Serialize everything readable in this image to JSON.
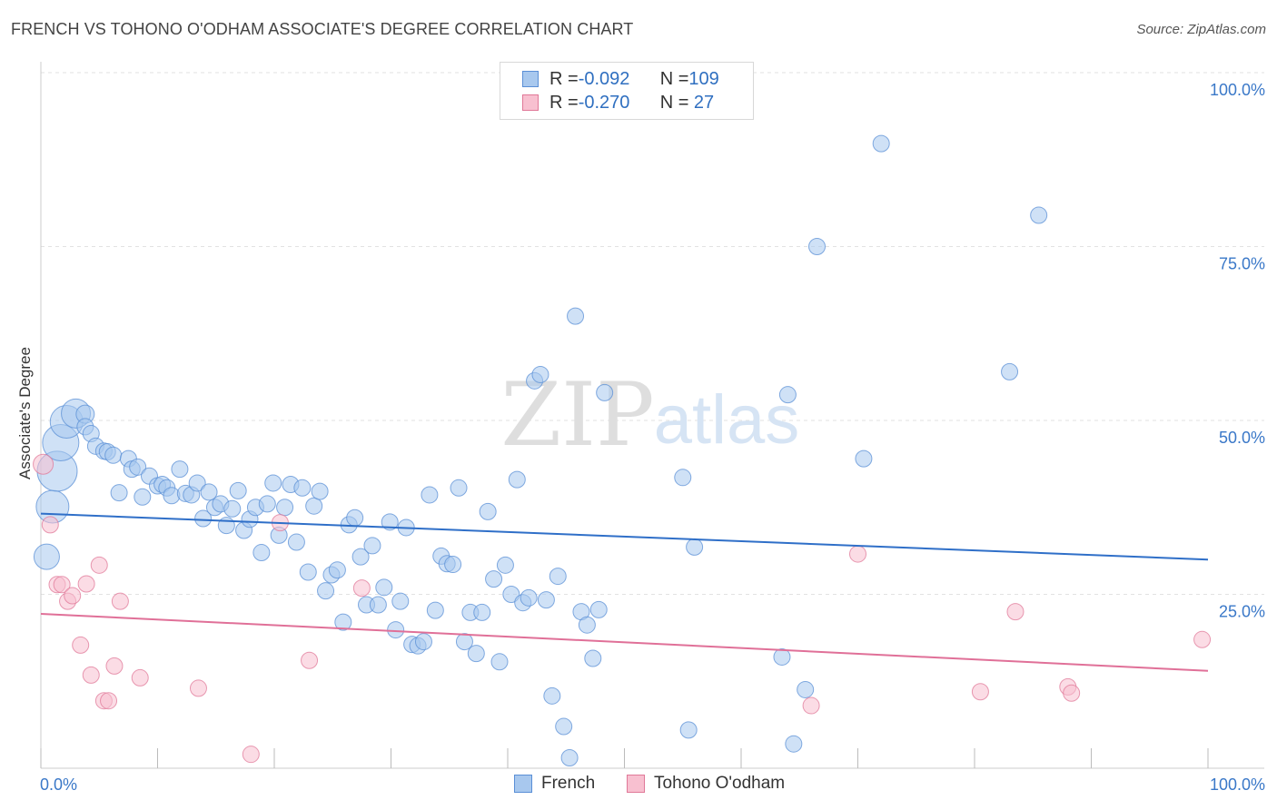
{
  "title": "FRENCH VS TOHONO O'ODHAM ASSOCIATE'S DEGREE CORRELATION CHART",
  "source": "Source: ZipAtlas.com",
  "watermark": {
    "zip": "ZIP",
    "atlas": "atlas"
  },
  "legend": {
    "rows": [
      {
        "r_label": "R = ",
        "r_value": "-0.092",
        "n_label": "N = ",
        "n_value": "109",
        "color": "#a8c8ee",
        "border": "#5a8fd6"
      },
      {
        "r_label": "R = ",
        "r_value": "-0.270",
        "n_label": "N = ",
        "n_value": " 27",
        "color": "#f8c0d0",
        "border": "#e07898"
      }
    ]
  },
  "bottom_legend": [
    {
      "label": "French",
      "color": "#a8c8ee",
      "border": "#5a8fd6"
    },
    {
      "label": "Tohono O'odham",
      "color": "#f8c0d0",
      "border": "#e07898"
    }
  ],
  "chart_data": {
    "type": "scatter",
    "title": "FRENCH VS TOHONO O'ODHAM ASSOCIATE'S DEGREE CORRELATION CHART",
    "xlabel": "",
    "ylabel": "Associate's Degree",
    "xlim": [
      0,
      100
    ],
    "ylim": [
      0,
      100
    ],
    "x_tick_labels": [
      "0.0%",
      "100.0%"
    ],
    "y_tick_labels": [
      "100.0%",
      "75.0%",
      "50.0%",
      "25.0%"
    ],
    "y_tick_values": [
      100,
      75,
      50,
      25
    ],
    "grid": true,
    "series": [
      {
        "name": "French",
        "color": "#a8c8ee",
        "stroke": "#5a8fd6",
        "trend": {
          "x": [
            0,
            100
          ],
          "y": [
            36.6,
            30.0
          ],
          "color": "#2f6fc8"
        },
        "points": [
          [
            0.5,
            30.4,
            14
          ],
          [
            1.0,
            37.6,
            18
          ],
          [
            1.4,
            42.7,
            22
          ],
          [
            1.7,
            46.8,
            20
          ],
          [
            2.2,
            49.8,
            18
          ],
          [
            3.0,
            51.0,
            16
          ],
          [
            3.8,
            50.9,
            10
          ],
          [
            3.8,
            49.1,
            9
          ],
          [
            4.3,
            48.1,
            9
          ],
          [
            4.7,
            46.3,
            9
          ],
          [
            5.4,
            45.6,
            9
          ],
          [
            5.7,
            45.5,
            9
          ],
          [
            6.2,
            45.0,
            9
          ],
          [
            6.7,
            39.6,
            9
          ],
          [
            7.5,
            44.5,
            9
          ],
          [
            7.8,
            43.0,
            9
          ],
          [
            8.3,
            43.3,
            9
          ],
          [
            8.7,
            39.0,
            9
          ],
          [
            9.3,
            42.0,
            9
          ],
          [
            10.0,
            40.6,
            9
          ],
          [
            10.4,
            40.8,
            9
          ],
          [
            10.8,
            40.3,
            9
          ],
          [
            11.2,
            39.2,
            9
          ],
          [
            11.9,
            43.0,
            9
          ],
          [
            12.4,
            39.5,
            9
          ],
          [
            12.9,
            39.3,
            9
          ],
          [
            13.4,
            41.0,
            9
          ],
          [
            13.9,
            35.9,
            9
          ],
          [
            14.4,
            39.7,
            9
          ],
          [
            14.9,
            37.5,
            9
          ],
          [
            15.4,
            38.0,
            9
          ],
          [
            15.9,
            34.9,
            9
          ],
          [
            16.4,
            37.3,
            9
          ],
          [
            16.9,
            39.9,
            9
          ],
          [
            17.4,
            34.2,
            9
          ],
          [
            17.9,
            35.8,
            9
          ],
          [
            18.4,
            37.5,
            9
          ],
          [
            18.9,
            31.0,
            9
          ],
          [
            19.4,
            38.0,
            9
          ],
          [
            19.9,
            41.0,
            9
          ],
          [
            20.4,
            33.5,
            9
          ],
          [
            20.9,
            37.5,
            9
          ],
          [
            21.4,
            40.8,
            9
          ],
          [
            21.9,
            32.5,
            9
          ],
          [
            22.4,
            40.3,
            9
          ],
          [
            22.9,
            28.2,
            9
          ],
          [
            23.4,
            37.7,
            9
          ],
          [
            23.9,
            39.8,
            9
          ],
          [
            24.4,
            25.5,
            9
          ],
          [
            24.9,
            27.8,
            9
          ],
          [
            25.4,
            28.5,
            9
          ],
          [
            25.9,
            21.0,
            9
          ],
          [
            26.4,
            35.0,
            9
          ],
          [
            26.9,
            36.0,
            9
          ],
          [
            27.4,
            30.4,
            9
          ],
          [
            27.9,
            23.5,
            9
          ],
          [
            28.4,
            32.0,
            9
          ],
          [
            28.9,
            23.5,
            9
          ],
          [
            29.4,
            26.0,
            9
          ],
          [
            29.9,
            35.4,
            9
          ],
          [
            30.4,
            19.9,
            9
          ],
          [
            30.8,
            24.0,
            9
          ],
          [
            31.3,
            34.6,
            9
          ],
          [
            31.8,
            17.8,
            9
          ],
          [
            32.3,
            17.6,
            9
          ],
          [
            32.8,
            18.2,
            9
          ],
          [
            33.3,
            39.3,
            9
          ],
          [
            33.8,
            22.7,
            9
          ],
          [
            34.3,
            30.5,
            9
          ],
          [
            34.8,
            29.4,
            9
          ],
          [
            35.3,
            29.3,
            9
          ],
          [
            35.8,
            40.3,
            9
          ],
          [
            36.3,
            18.2,
            9
          ],
          [
            36.8,
            22.4,
            9
          ],
          [
            37.3,
            16.5,
            9
          ],
          [
            37.8,
            22.4,
            9
          ],
          [
            38.3,
            36.9,
            9
          ],
          [
            38.8,
            27.2,
            9
          ],
          [
            39.3,
            15.3,
            9
          ],
          [
            39.8,
            29.2,
            9
          ],
          [
            40.3,
            25.0,
            9
          ],
          [
            40.8,
            41.5,
            9
          ],
          [
            41.3,
            23.8,
            9
          ],
          [
            41.8,
            24.5,
            9
          ],
          [
            42.3,
            55.7,
            9
          ],
          [
            42.8,
            56.6,
            9
          ],
          [
            43.3,
            24.2,
            9
          ],
          [
            43.8,
            10.4,
            9
          ],
          [
            44.3,
            27.6,
            9
          ],
          [
            44.8,
            6.0,
            9
          ],
          [
            45.3,
            1.5,
            9
          ],
          [
            45.8,
            65.0,
            9
          ],
          [
            46.3,
            22.5,
            9
          ],
          [
            46.8,
            20.6,
            9
          ],
          [
            47.3,
            15.8,
            9
          ],
          [
            47.8,
            22.8,
            9
          ],
          [
            48.3,
            54.0,
            9
          ],
          [
            55.0,
            41.8,
            9
          ],
          [
            55.5,
            5.5,
            9
          ],
          [
            56.0,
            31.8,
            9
          ],
          [
            63.5,
            16.0,
            9
          ],
          [
            64.0,
            53.7,
            9
          ],
          [
            64.5,
            3.5,
            9
          ],
          [
            65.5,
            11.3,
            9
          ],
          [
            66.5,
            75.0,
            9
          ],
          [
            70.5,
            44.5,
            9
          ],
          [
            72.0,
            89.8,
            9
          ],
          [
            83.0,
            57.0,
            9
          ],
          [
            85.5,
            79.5,
            9
          ]
        ]
      },
      {
        "name": "Tohono O'odham",
        "color": "#f8c0d0",
        "stroke": "#e07898",
        "trend": {
          "x": [
            0,
            100
          ],
          "y": [
            22.2,
            14.0
          ],
          "color": "#e07098"
        },
        "points": [
          [
            0.2,
            43.7,
            11
          ],
          [
            0.8,
            35.0,
            9
          ],
          [
            1.4,
            26.4,
            9
          ],
          [
            1.8,
            26.4,
            9
          ],
          [
            2.3,
            24.0,
            9
          ],
          [
            2.7,
            24.8,
            9
          ],
          [
            3.4,
            17.7,
            9
          ],
          [
            3.9,
            26.5,
            9
          ],
          [
            4.3,
            13.4,
            9
          ],
          [
            5.0,
            29.2,
            9
          ],
          [
            5.4,
            9.7,
            9
          ],
          [
            5.8,
            9.7,
            9
          ],
          [
            6.3,
            14.7,
            9
          ],
          [
            6.8,
            24.0,
            9
          ],
          [
            8.5,
            13.0,
            9
          ],
          [
            13.5,
            11.5,
            9
          ],
          [
            18.0,
            2.0,
            9
          ],
          [
            20.5,
            35.3,
            9
          ],
          [
            23.0,
            15.5,
            9
          ],
          [
            27.5,
            25.9,
            9
          ],
          [
            66.0,
            9.0,
            9
          ],
          [
            70.0,
            30.8,
            9
          ],
          [
            80.5,
            11.0,
            9
          ],
          [
            83.5,
            22.5,
            9
          ],
          [
            88.0,
            11.7,
            9
          ],
          [
            88.3,
            10.8,
            9
          ],
          [
            99.5,
            18.5,
            9
          ]
        ]
      }
    ]
  }
}
